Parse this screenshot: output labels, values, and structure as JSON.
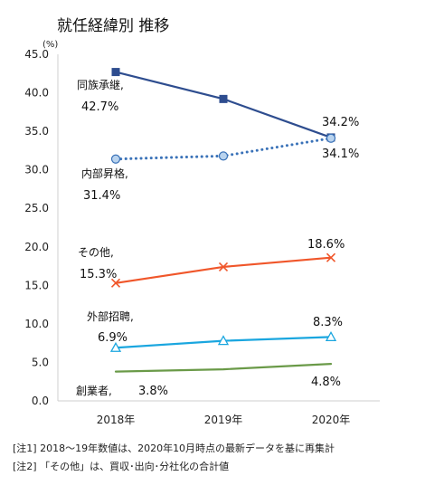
{
  "chart_data": {
    "type": "line",
    "title": "就任経緯別 推移",
    "ylabel": "(%)",
    "ylim": [
      0,
      45
    ],
    "yticks": [
      "45.0",
      "40.0",
      "35.0",
      "30.0",
      "25.0",
      "20.0",
      "15.0",
      "10.0",
      "5.0",
      "0.0"
    ],
    "categories": [
      "2018年",
      "2019年",
      "2020年"
    ],
    "grid": false,
    "series": [
      {
        "name": "同族承継,",
        "values": [
          42.7,
          39.2,
          34.2
        ],
        "color": "#2e4d8f",
        "marker": "square",
        "dash": "solid",
        "first_label": "42.7%",
        "last_label": "34.2%"
      },
      {
        "name": "内部昇格,",
        "values": [
          31.4,
          31.8,
          34.1
        ],
        "color": "#3a72b8",
        "marker": "circle",
        "dash": "dotted",
        "first_label": "31.4%",
        "last_label": "34.1%"
      },
      {
        "name": "その他,",
        "values": [
          15.3,
          17.4,
          18.6
        ],
        "color": "#f0562a",
        "marker": "x",
        "dash": "solid",
        "first_label": "15.3%",
        "last_label": "18.6%"
      },
      {
        "name": "外部招聘,",
        "values": [
          6.9,
          7.8,
          8.3
        ],
        "color": "#1aa6df",
        "marker": "triangle",
        "dash": "solid",
        "first_label": "6.9%",
        "last_label": "8.3%"
      },
      {
        "name": "創業者,",
        "values": [
          3.8,
          4.1,
          4.8
        ],
        "color": "#6a9a48",
        "marker": "none",
        "dash": "solid",
        "first_label": "3.8%",
        "last_label": "4.8%"
      }
    ]
  },
  "notes": [
    "[注1] 2018～19年数値は、2020年10月時点の最新データを基に再集計",
    "[注2] 「その他」は、買収･出向･分社化の合計値"
  ]
}
